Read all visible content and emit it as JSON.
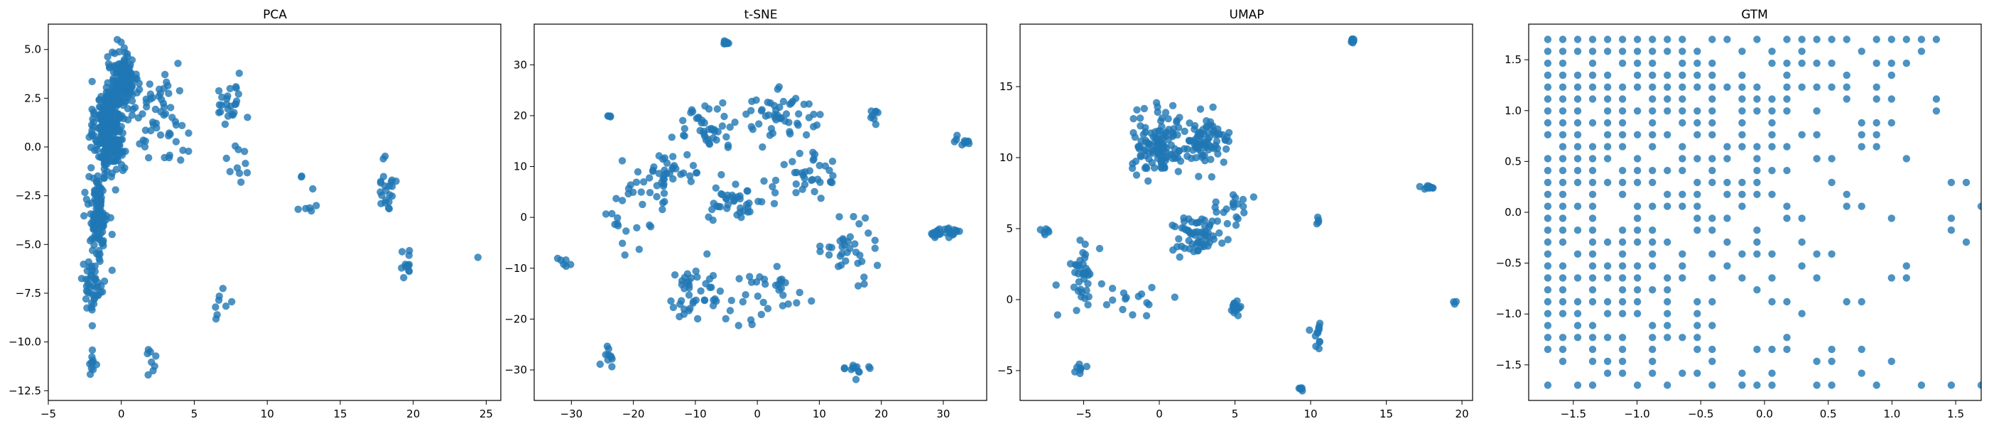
{
  "figure": {
    "background": "#ffffff",
    "point_color": "#1f77b4",
    "point_opacity": 0.8
  },
  "chart_data": [
    {
      "type": "scatter",
      "title": "PCA",
      "xlabel": "",
      "ylabel": "",
      "xlim": [
        -5,
        26
      ],
      "ylim": [
        -13,
        6.3
      ],
      "xticks": [
        -5,
        0,
        5,
        10,
        15,
        20,
        25
      ],
      "xtick_labels": [
        "−5",
        "0",
        "5",
        "10",
        "15",
        "20",
        "25"
      ],
      "yticks": [
        -12.5,
        -10.0,
        -7.5,
        -5.0,
        -2.5,
        0.0,
        2.5,
        5.0
      ],
      "ytick_labels": [
        "−12.5",
        "−10.0",
        "−7.5",
        "−5.0",
        "−2.5",
        "0.0",
        "2.5",
        "5.0"
      ],
      "grid": false,
      "clusters": [
        {
          "center": [
            -0.8,
            1.0
          ],
          "spread": [
            0.9,
            2.2
          ],
          "count": 320
        },
        {
          "center": [
            0.2,
            3.5
          ],
          "spread": [
            0.8,
            1.3
          ],
          "count": 120
        },
        {
          "center": [
            -1.6,
            -3.5
          ],
          "spread": [
            0.6,
            2.0
          ],
          "count": 110
        },
        {
          "center": [
            -1.9,
            -7.0
          ],
          "spread": [
            0.8,
            1.2
          ],
          "count": 45
        },
        {
          "center": [
            -2.0,
            -11.0
          ],
          "spread": [
            0.3,
            0.6
          ],
          "count": 10
        },
        {
          "center": [
            2.5,
            1.5
          ],
          "spread": [
            1.8,
            2.0
          ],
          "count": 60
        },
        {
          "center": [
            7.5,
            2.5
          ],
          "spread": [
            0.9,
            1.5
          ],
          "count": 25
        },
        {
          "center": [
            8.0,
            -1.0
          ],
          "spread": [
            0.8,
            1.2
          ],
          "count": 10
        },
        {
          "center": [
            7.0,
            -8.0
          ],
          "spread": [
            0.6,
            0.6
          ],
          "count": 8
        },
        {
          "center": [
            2.0,
            -11.0
          ],
          "spread": [
            0.3,
            0.7
          ],
          "count": 8
        },
        {
          "center": [
            13.0,
            -2.5
          ],
          "spread": [
            0.9,
            2.0
          ],
          "count": 8
        },
        {
          "center": [
            18.2,
            -2.0
          ],
          "spread": [
            0.4,
            1.6
          ],
          "count": 22
        },
        {
          "center": [
            19.5,
            -6.0
          ],
          "spread": [
            0.5,
            0.7
          ],
          "count": 12
        },
        {
          "center": [
            24.5,
            -5.7
          ],
          "spread": [
            0.1,
            0.1
          ],
          "count": 1
        }
      ]
    },
    {
      "type": "scatter",
      "title": "t-SNE",
      "xlabel": "",
      "ylabel": "",
      "xlim": [
        -36,
        37
      ],
      "ylim": [
        -36,
        38
      ],
      "xticks": [
        -30,
        -20,
        -10,
        0,
        10,
        20,
        30
      ],
      "xtick_labels": [
        "−30",
        "−20",
        "−10",
        "0",
        "10",
        "20",
        "30"
      ],
      "yticks": [
        -30,
        -20,
        -10,
        0,
        10,
        20,
        30
      ],
      "ytick_labels": [
        "−30",
        "−20",
        "−10",
        "0",
        "10",
        "20",
        "30"
      ],
      "grid": false,
      "clusters": [
        {
          "center": [
            -5,
            34.5
          ],
          "spread": [
            0.6,
            0.5
          ],
          "count": 8
        },
        {
          "center": [
            -8,
            18
          ],
          "spread": [
            5,
            4
          ],
          "count": 40
        },
        {
          "center": [
            4,
            20
          ],
          "spread": [
            6,
            4
          ],
          "count": 50
        },
        {
          "center": [
            -15,
            8
          ],
          "spread": [
            6,
            5
          ],
          "count": 45
        },
        {
          "center": [
            -3,
            3
          ],
          "spread": [
            4,
            4
          ],
          "count": 40
        },
        {
          "center": [
            8,
            8
          ],
          "spread": [
            5,
            5
          ],
          "count": 35
        },
        {
          "center": [
            -22,
            0
          ],
          "spread": [
            3,
            5
          ],
          "count": 20
        },
        {
          "center": [
            -10,
            -15
          ],
          "spread": [
            5,
            6
          ],
          "count": 45
        },
        {
          "center": [
            3,
            -15
          ],
          "spread": [
            5,
            5
          ],
          "count": 30
        },
        {
          "center": [
            15,
            -6
          ],
          "spread": [
            4,
            5
          ],
          "count": 35
        },
        {
          "center": [
            16,
            -30
          ],
          "spread": [
            2,
            1.5
          ],
          "count": 12
        },
        {
          "center": [
            30,
            -3
          ],
          "spread": [
            3,
            1.2
          ],
          "count": 25
        },
        {
          "center": [
            33,
            15
          ],
          "spread": [
            1,
            1
          ],
          "count": 10
        },
        {
          "center": [
            -31,
            -9
          ],
          "spread": [
            1,
            1
          ],
          "count": 6
        },
        {
          "center": [
            -24,
            -27
          ],
          "spread": [
            1,
            2
          ],
          "count": 10
        },
        {
          "center": [
            19,
            20
          ],
          "spread": [
            1,
            2.5
          ],
          "count": 8
        },
        {
          "center": [
            -24,
            20
          ],
          "spread": [
            0.5,
            0.3
          ],
          "count": 4
        }
      ]
    },
    {
      "type": "scatter",
      "title": "UMAP",
      "xlabel": "",
      "ylabel": "",
      "xlim": [
        -9.2,
        20.7
      ],
      "ylim": [
        -7.1,
        19.4
      ],
      "xticks": [
        -5,
        0,
        5,
        10,
        15,
        20
      ],
      "xtick_labels": [
        "−5",
        "0",
        "5",
        "10",
        "15",
        "20"
      ],
      "yticks": [
        -5,
        0,
        5,
        10,
        15
      ],
      "ytick_labels": [
        "−5",
        "0",
        "5",
        "10",
        "15"
      ],
      "grid": false,
      "clusters": [
        {
          "center": [
            0,
            11
          ],
          "spread": [
            1.6,
            2.0
          ],
          "count": 120
        },
        {
          "center": [
            3,
            11
          ],
          "spread": [
            1.5,
            1.4
          ],
          "count": 80
        },
        {
          "center": [
            2.5,
            4.5
          ],
          "spread": [
            1.5,
            1.3
          ],
          "count": 60
        },
        {
          "center": [
            5,
            6.5
          ],
          "spread": [
            1.5,
            1.0
          ],
          "count": 20
        },
        {
          "center": [
            -5,
            2
          ],
          "spread": [
            0.8,
            2.0
          ],
          "count": 40
        },
        {
          "center": [
            -1.5,
            0
          ],
          "spread": [
            1.5,
            0.8
          ],
          "count": 15
        },
        {
          "center": [
            5,
            -0.7
          ],
          "spread": [
            0.3,
            0.4
          ],
          "count": 20
        },
        {
          "center": [
            12.7,
            18.2
          ],
          "spread": [
            0.15,
            0.2
          ],
          "count": 8
        },
        {
          "center": [
            17.8,
            7.9
          ],
          "spread": [
            0.5,
            0.2
          ],
          "count": 10
        },
        {
          "center": [
            10.5,
            -2.5
          ],
          "spread": [
            0.4,
            1.0
          ],
          "count": 12
        },
        {
          "center": [
            10.5,
            5.5
          ],
          "spread": [
            0.1,
            0.3
          ],
          "count": 4
        },
        {
          "center": [
            9.3,
            -6.3
          ],
          "spread": [
            0.25,
            0.15
          ],
          "count": 6
        },
        {
          "center": [
            -5.2,
            -4.8
          ],
          "spread": [
            0.3,
            0.4
          ],
          "count": 8
        },
        {
          "center": [
            19.5,
            -0.2
          ],
          "spread": [
            0.15,
            0.15
          ],
          "count": 3
        },
        {
          "center": [
            -7.5,
            4.8
          ],
          "spread": [
            0.5,
            0.2
          ],
          "count": 6
        }
      ]
    },
    {
      "type": "scatter",
      "title": "GTM",
      "xlabel": "",
      "ylabel": "",
      "xlim": [
        -1.85,
        1.7
      ],
      "ylim": [
        -1.85,
        1.85
      ],
      "xticks": [
        -1.5,
        -1.0,
        -0.5,
        0.0,
        0.5,
        1.0,
        1.5
      ],
      "xtick_labels": [
        "−1.5",
        "−1.0",
        "−0.5",
        "0.0",
        "0.5",
        "1.0",
        "1.5"
      ],
      "yticks": [
        -1.5,
        -1.0,
        -0.5,
        0.0,
        0.5,
        1.0,
        1.5
      ],
      "ytick_labels": [
        "−1.5",
        "−1.0",
        "−0.5",
        "0.0",
        "0.5",
        "1.0",
        "1.5"
      ],
      "grid": false,
      "lattice": {
        "start": -1.7,
        "end": 1.7,
        "count": 30
      },
      "occupancy_rule": "occupied nodes lie mostly in the upper-left triangle plus a band along the bottom row, thinning toward the right"
    }
  ]
}
